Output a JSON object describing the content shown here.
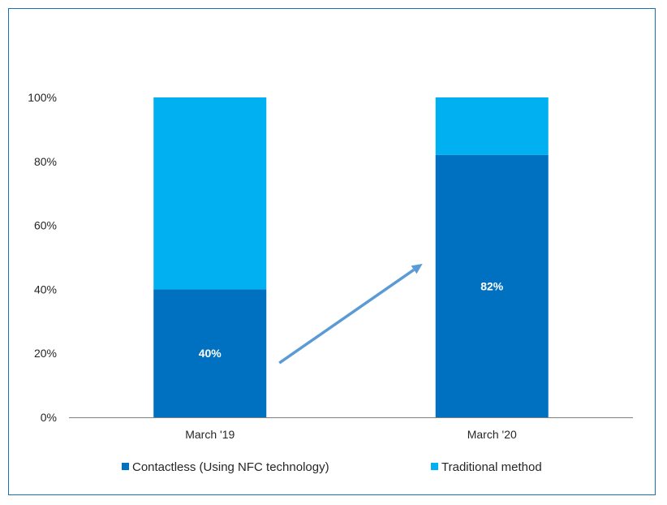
{
  "chart_data": {
    "type": "bar",
    "stacked": true,
    "categories": [
      "March '19",
      "March '20"
    ],
    "series": [
      {
        "name": "Contactless (Using NFC technology)",
        "values": [
          40,
          82
        ],
        "color": "#0070c0"
      },
      {
        "name": "Traditional method",
        "values": [
          60,
          18
        ],
        "color": "#00b0f0"
      }
    ],
    "data_labels": [
      "40%",
      "82%"
    ],
    "ylim": [
      0,
      100
    ],
    "yticks": [
      "0%",
      "20%",
      "40%",
      "60%",
      "80%",
      "100%"
    ],
    "ytick_values": [
      0,
      20,
      40,
      60,
      80,
      100
    ],
    "grid": false,
    "legend_position": "bottom",
    "annotation": {
      "type": "arrow",
      "color": "#5b9bd5",
      "from_category": "March '19",
      "to_category": "March '20",
      "from_y": 17,
      "to_y": 48
    }
  }
}
